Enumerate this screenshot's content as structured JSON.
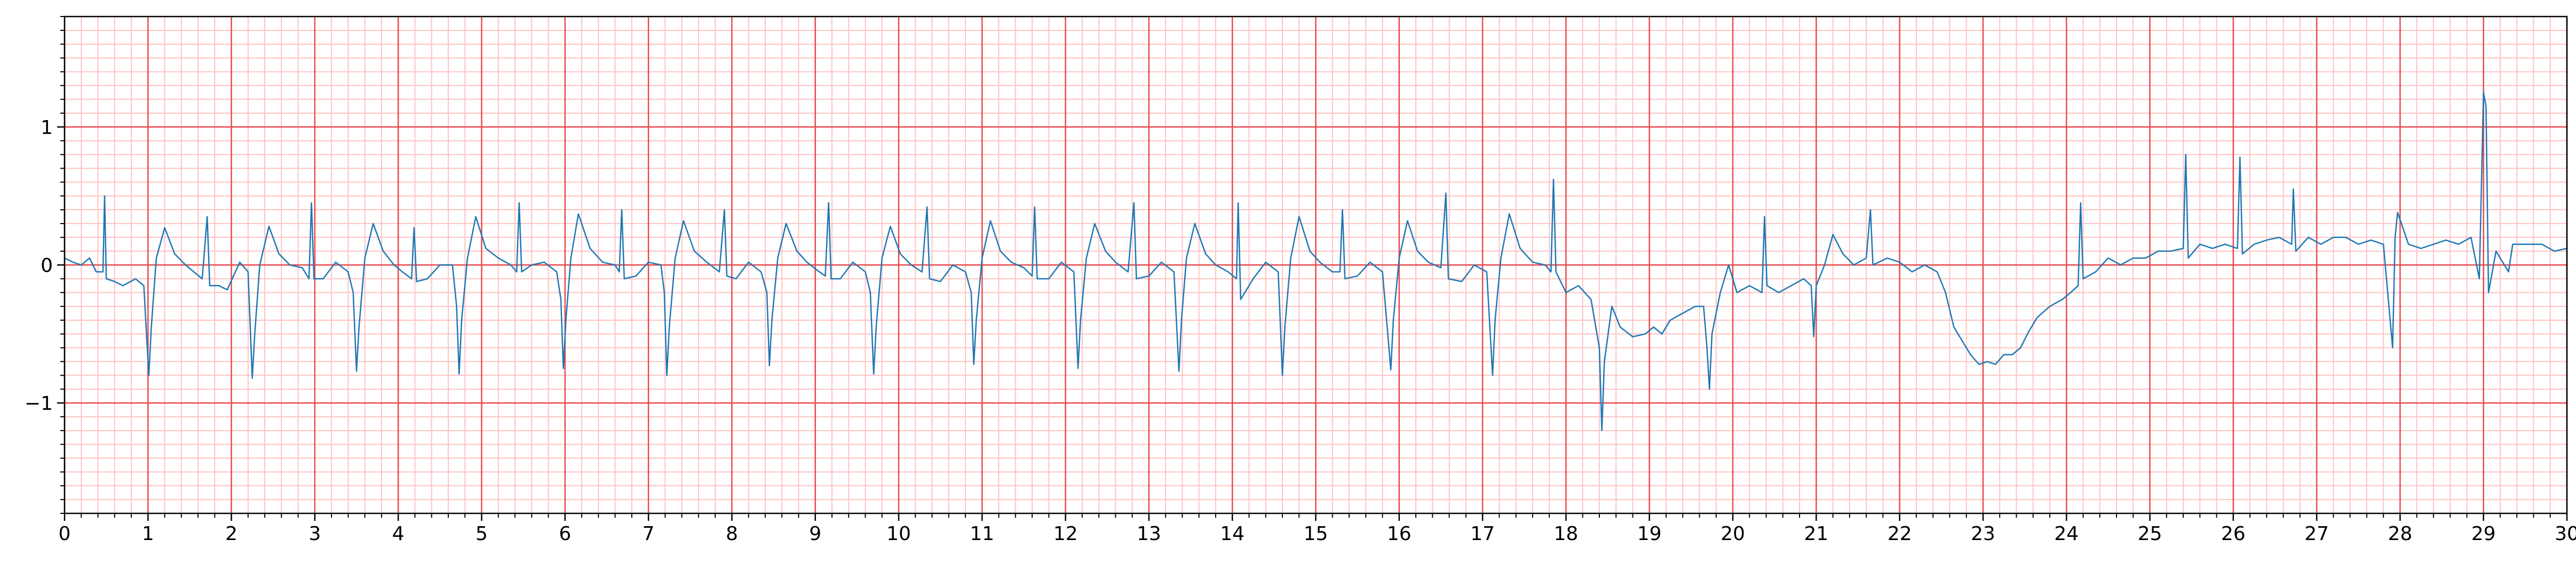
{
  "chart_data": {
    "type": "line",
    "x": [
      0,
      0.1,
      0.2,
      0.3,
      0.38,
      0.46,
      0.48,
      0.5,
      0.6,
      0.7,
      0.85,
      0.95,
      1.01,
      1.04,
      1.1,
      1.2,
      1.32,
      1.45,
      1.55,
      1.65,
      1.71,
      1.74,
      1.85,
      1.95,
      2.1,
      2.2,
      2.25,
      2.28,
      2.34,
      2.45,
      2.57,
      2.7,
      2.85,
      2.93,
      2.96,
      2.99,
      3.1,
      3.25,
      3.4,
      3.46,
      3.5,
      3.53,
      3.6,
      3.7,
      3.82,
      3.95,
      4.05,
      4.16,
      4.19,
      4.22,
      4.35,
      4.5,
      4.65,
      4.7,
      4.73,
      4.76,
      4.83,
      4.93,
      5.05,
      5.2,
      5.35,
      5.42,
      5.45,
      5.48,
      5.6,
      5.75,
      5.9,
      5.95,
      5.98,
      6.01,
      6.07,
      6.16,
      6.3,
      6.45,
      6.6,
      6.65,
      6.68,
      6.71,
      6.85,
      7.0,
      7.15,
      7.19,
      7.22,
      7.25,
      7.32,
      7.42,
      7.55,
      7.7,
      7.85,
      7.91,
      7.94,
      8.05,
      8.2,
      8.35,
      8.42,
      8.45,
      8.48,
      8.55,
      8.65,
      8.78,
      8.9,
      9.05,
      9.12,
      9.16,
      9.19,
      9.3,
      9.45,
      9.6,
      9.66,
      9.7,
      9.73,
      9.8,
      9.9,
      10.02,
      10.15,
      10.28,
      10.34,
      10.37,
      10.5,
      10.65,
      10.8,
      10.87,
      10.9,
      10.93,
      11.0,
      11.1,
      11.22,
      11.35,
      11.5,
      11.6,
      11.63,
      11.66,
      11.8,
      11.95,
      12.1,
      12.15,
      12.18,
      12.25,
      12.35,
      12.48,
      12.6,
      12.75,
      12.82,
      12.85,
      13.0,
      13.15,
      13.3,
      13.36,
      13.39,
      13.45,
      13.55,
      13.68,
      13.8,
      13.95,
      14.05,
      14.07,
      14.1,
      14.25,
      14.4,
      14.55,
      14.6,
      14.63,
      14.7,
      14.8,
      14.93,
      15.05,
      15.2,
      15.29,
      15.32,
      15.35,
      15.5,
      15.65,
      15.8,
      15.9,
      15.93,
      16.0,
      16.1,
      16.22,
      16.35,
      16.5,
      16.56,
      16.59,
      16.75,
      16.9,
      17.05,
      17.12,
      17.15,
      17.22,
      17.32,
      17.45,
      17.6,
      17.75,
      17.82,
      17.85,
      17.88,
      18.0,
      18.15,
      18.3,
      18.4,
      18.43,
      18.46,
      18.55,
      18.65,
      18.8,
      18.95,
      19.05,
      19.15,
      19.25,
      19.4,
      19.55,
      19.65,
      19.69,
      19.72,
      19.75,
      19.85,
      19.95,
      20.05,
      20.2,
      20.35,
      20.38,
      20.41,
      20.55,
      20.7,
      20.85,
      20.94,
      20.97,
      21.0,
      21.1,
      21.2,
      21.32,
      21.45,
      21.6,
      21.65,
      21.68,
      21.85,
      22.0,
      22.15,
      22.3,
      22.45,
      22.55,
      22.65,
      22.75,
      22.85,
      22.95,
      23.05,
      23.15,
      23.25,
      23.35,
      23.45,
      23.55,
      23.65,
      23.8,
      23.95,
      24.05,
      24.14,
      24.17,
      24.2,
      24.35,
      24.5,
      24.65,
      24.8,
      24.95,
      25.1,
      25.25,
      25.4,
      25.43,
      25.46,
      25.6,
      25.75,
      25.9,
      26.05,
      26.08,
      26.11,
      26.25,
      26.4,
      26.55,
      26.7,
      26.72,
      26.75,
      26.9,
      27.05,
      27.2,
      27.35,
      27.5,
      27.65,
      27.8,
      27.91,
      27.94,
      27.97,
      28.1,
      28.25,
      28.4,
      28.55,
      28.7,
      28.85,
      28.95,
      29.0,
      29.03,
      29.06,
      29.15,
      29.3,
      29.35,
      29.5,
      29.7,
      29.85,
      30.0
    ],
    "values": [
      0.05,
      0.02,
      0.0,
      0.05,
      -0.05,
      -0.05,
      0.5,
      -0.1,
      -0.12,
      -0.15,
      -0.1,
      -0.15,
      -0.8,
      -0.45,
      0.05,
      0.27,
      0.08,
      0.0,
      -0.05,
      -0.1,
      0.35,
      -0.15,
      -0.15,
      -0.18,
      0.02,
      -0.05,
      -0.82,
      -0.5,
      0.0,
      0.28,
      0.08,
      0.0,
      -0.02,
      -0.1,
      0.45,
      -0.1,
      -0.1,
      0.02,
      -0.05,
      -0.2,
      -0.77,
      -0.45,
      0.05,
      0.3,
      0.1,
      0.0,
      -0.05,
      -0.1,
      0.27,
      -0.12,
      -0.1,
      0.0,
      0.0,
      -0.3,
      -0.79,
      -0.4,
      0.05,
      0.35,
      0.12,
      0.05,
      0.0,
      -0.05,
      0.45,
      -0.05,
      0.0,
      0.02,
      -0.05,
      -0.25,
      -0.75,
      -0.4,
      0.05,
      0.37,
      0.12,
      0.02,
      0.0,
      -0.05,
      0.4,
      -0.1,
      -0.08,
      0.02,
      0.0,
      -0.2,
      -0.8,
      -0.45,
      0.05,
      0.32,
      0.1,
      0.02,
      -0.05,
      0.4,
      -0.08,
      -0.1,
      0.02,
      -0.05,
      -0.2,
      -0.73,
      -0.4,
      0.05,
      0.3,
      0.1,
      0.02,
      -0.05,
      -0.08,
      0.45,
      -0.1,
      -0.1,
      0.02,
      -0.05,
      -0.2,
      -0.79,
      -0.45,
      0.05,
      0.28,
      0.08,
      0.0,
      -0.05,
      0.42,
      -0.1,
      -0.12,
      0.0,
      -0.05,
      -0.2,
      -0.72,
      -0.4,
      0.05,
      0.32,
      0.1,
      0.02,
      -0.02,
      -0.08,
      0.42,
      -0.1,
      -0.1,
      0.02,
      -0.05,
      -0.75,
      -0.4,
      0.05,
      0.3,
      0.1,
      0.02,
      -0.05,
      0.45,
      -0.1,
      -0.08,
      0.02,
      -0.05,
      -0.77,
      -0.4,
      0.05,
      0.3,
      0.08,
      0.0,
      -0.05,
      -0.1,
      0.45,
      -0.25,
      -0.1,
      0.02,
      -0.05,
      -0.8,
      -0.45,
      0.05,
      0.35,
      0.1,
      0.02,
      -0.05,
      -0.05,
      0.4,
      -0.1,
      -0.08,
      0.02,
      -0.05,
      -0.76,
      -0.4,
      0.05,
      0.32,
      0.1,
      0.02,
      -0.02,
      0.52,
      -0.1,
      -0.12,
      0.0,
      -0.05,
      -0.8,
      -0.4,
      0.05,
      0.37,
      0.12,
      0.02,
      0.0,
      -0.05,
      0.62,
      -0.05,
      -0.2,
      -0.15,
      -0.25,
      -0.6,
      -1.2,
      -0.7,
      -0.3,
      -0.45,
      -0.52,
      -0.5,
      -0.45,
      -0.5,
      -0.4,
      -0.35,
      -0.3,
      -0.3,
      -0.6,
      -0.9,
      -0.5,
      -0.2,
      0.0,
      -0.2,
      -0.15,
      -0.2,
      0.35,
      -0.15,
      -0.2,
      -0.15,
      -0.1,
      -0.15,
      -0.52,
      -0.15,
      0.0,
      0.22,
      0.08,
      0.0,
      0.05,
      0.4,
      0.0,
      0.05,
      0.02,
      -0.05,
      0.0,
      -0.05,
      -0.2,
      -0.45,
      -0.55,
      -0.65,
      -0.72,
      -0.7,
      -0.72,
      -0.65,
      -0.65,
      -0.6,
      -0.48,
      -0.38,
      -0.3,
      -0.25,
      -0.2,
      -0.15,
      0.45,
      -0.1,
      -0.05,
      0.05,
      0.0,
      0.05,
      0.05,
      0.1,
      0.1,
      0.12,
      0.8,
      0.05,
      0.15,
      0.12,
      0.15,
      0.12,
      0.78,
      0.08,
      0.15,
      0.18,
      0.2,
      0.15,
      0.55,
      0.1,
      0.2,
      0.15,
      0.2,
      0.2,
      0.15,
      0.18,
      0.15,
      -0.6,
      0.2,
      0.38,
      0.15,
      0.12,
      0.15,
      0.18,
      0.15,
      0.2,
      -0.1,
      1.25,
      1.15,
      -0.2,
      0.1,
      -0.05,
      0.15,
      0.15,
      0.15,
      0.1,
      0.12
    ],
    "color": "#1f77b4",
    "xlim": [
      0,
      30
    ],
    "ylim": [
      -1.8,
      1.8
    ],
    "xticks": [
      0,
      1,
      2,
      3,
      4,
      5,
      6,
      7,
      8,
      9,
      10,
      11,
      12,
      13,
      14,
      15,
      16,
      17,
      18,
      19,
      20,
      21,
      22,
      23,
      24,
      25,
      26,
      27,
      28,
      29,
      30
    ],
    "yticks": [
      {
        "value": -1,
        "label": "−1"
      },
      0,
      1
    ],
    "xminorticks": [
      0.2,
      0.4,
      0.6,
      0.8,
      1.2,
      1.4,
      1.6,
      1.8,
      2.2,
      2.4,
      2.6,
      2.8,
      3.2,
      3.4,
      3.6,
      3.8,
      4.2,
      4.4,
      4.6,
      4.8,
      5.2,
      5.4,
      5.6,
      5.8,
      6.2,
      6.4,
      6.6,
      6.8,
      7.2,
      7.4,
      7.6,
      7.8,
      8.2,
      8.4,
      8.6,
      8.8,
      9.2,
      9.4,
      9.6,
      9.8,
      10.2,
      10.4,
      10.6,
      10.8,
      11.2,
      11.4,
      11.6,
      11.8,
      12.2,
      12.4,
      12.6,
      12.8,
      13.2,
      13.4,
      13.6,
      13.8,
      14.2,
      14.4,
      14.6,
      14.8,
      15.2,
      15.4,
      15.6,
      15.8,
      16.2,
      16.4,
      16.6,
      16.8,
      17.2,
      17.4,
      17.6,
      17.8,
      18.2,
      18.4,
      18.6,
      18.8,
      19.2,
      19.4,
      19.6,
      19.8,
      20.2,
      20.4,
      20.6,
      20.8,
      21.2,
      21.4,
      21.6,
      21.8,
      22.2,
      22.4,
      22.6,
      22.8,
      23.2,
      23.4,
      23.6,
      23.8,
      24.2,
      24.4,
      24.6,
      24.8,
      25.2,
      25.4,
      25.6,
      25.8,
      26.2,
      26.4,
      26.6,
      26.8,
      27.2,
      27.4,
      27.6,
      27.8,
      28.2,
      28.4,
      28.6,
      28.8,
      29.2,
      29.4,
      29.6,
      29.8
    ],
    "yminorticks": [
      -1.8,
      -1.7,
      -1.6,
      -1.5,
      -1.4,
      -1.3,
      -1.2,
      -1.1,
      -0.9,
      -0.8,
      -0.7,
      -0.6,
      -0.5,
      -0.4,
      -0.3,
      -0.2,
      -0.1,
      0.1,
      0.2,
      0.3,
      0.4,
      0.5,
      0.6,
      0.7,
      0.8,
      0.9,
      1.1,
      1.2,
      1.3,
      1.4,
      1.5,
      1.6,
      1.7,
      1.8
    ],
    "grid": true,
    "major_grid_color": "#e8494d",
    "minor_grid_color": "#ffc2c2"
  }
}
